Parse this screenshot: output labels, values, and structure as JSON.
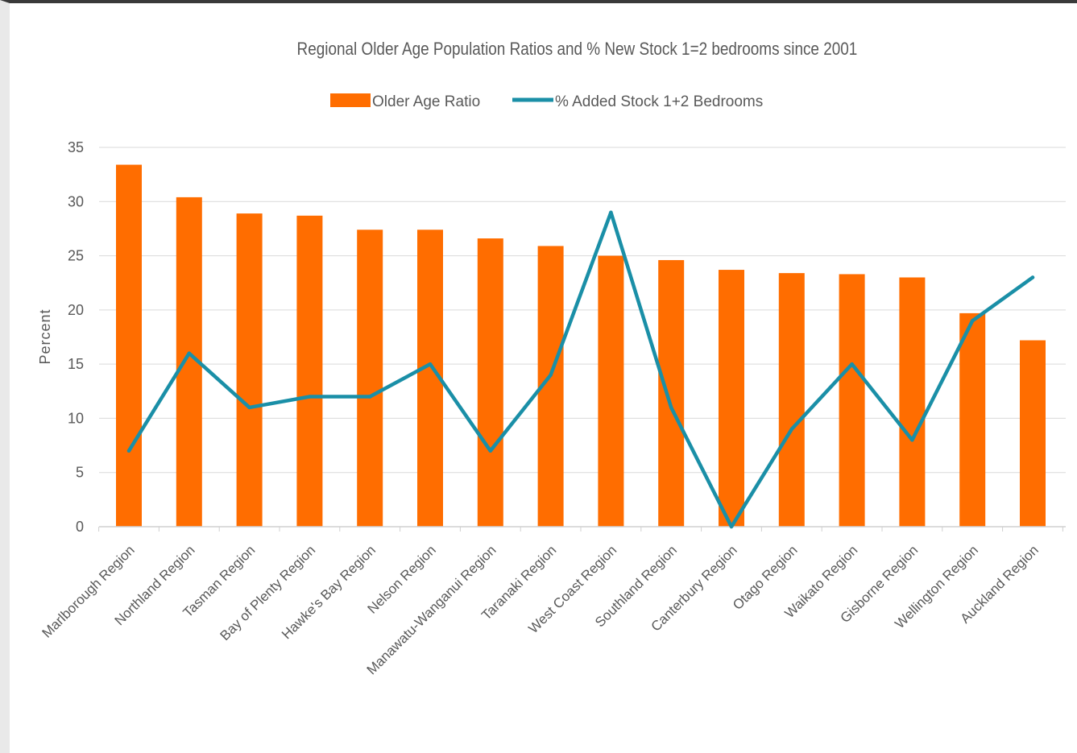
{
  "chart_data": {
    "type": "bar",
    "title": "Regional Older Age Population Ratios and % New Stock 1=2 bedrooms since 2001",
    "ylabel": "Percent",
    "xlabel": "",
    "ylim": [
      0,
      35
    ],
    "yticks": [
      0,
      5,
      10,
      15,
      20,
      25,
      30,
      35
    ],
    "grid": true,
    "legend_position": "top-center",
    "categories": [
      "Marlborough Region",
      "Northland Region",
      "Tasman Region",
      "Bay of Plenty Region",
      "Hawke's Bay Region",
      "Nelson Region",
      "Manawatu-Wanganui Region",
      "Taranaki Region",
      "West Coast Region",
      "Southland Region",
      "Canterbury Region",
      "Otago Region",
      "Waikato Region",
      "Gisborne Region",
      "Wellington Region",
      "Auckland Region"
    ],
    "series": [
      {
        "name": "Older Age Ratio",
        "kind": "bar",
        "color": "#ff6d00",
        "values": [
          33.4,
          30.4,
          28.9,
          28.7,
          27.4,
          27.4,
          26.6,
          25.9,
          25.0,
          24.6,
          23.7,
          23.4,
          23.3,
          23.0,
          19.7,
          17.2
        ]
      },
      {
        "name": "% Added Stock 1+2 Bedrooms",
        "kind": "line",
        "color": "#1a8fa7",
        "values": [
          7,
          16,
          11,
          12,
          12,
          15,
          7,
          14,
          29,
          11,
          0,
          9,
          15,
          8,
          19,
          23
        ]
      }
    ]
  }
}
